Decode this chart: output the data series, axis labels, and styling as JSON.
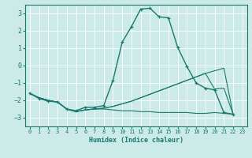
{
  "xlabel": "Humidex (Indice chaleur)",
  "bg_color": "#cceae7",
  "grid_color": "#ffffff",
  "line_color": "#1a7a6e",
  "xlim": [
    -0.5,
    23.5
  ],
  "ylim": [
    -3.5,
    3.5
  ],
  "xticks": [
    0,
    1,
    2,
    3,
    4,
    5,
    6,
    7,
    8,
    9,
    10,
    11,
    12,
    13,
    14,
    15,
    16,
    17,
    18,
    19,
    20,
    21,
    22,
    23
  ],
  "yticks": [
    -3,
    -2,
    -1,
    0,
    1,
    2,
    3
  ],
  "series": [
    {
      "x": [
        0,
        1,
        2,
        3,
        4,
        5,
        6,
        7,
        8,
        9,
        10,
        11,
        12,
        13,
        14,
        15,
        16,
        17,
        18,
        19,
        20,
        21,
        22
      ],
      "y": [
        -1.6,
        -1.9,
        -2.05,
        -2.1,
        -2.5,
        -2.6,
        -2.4,
        -2.4,
        -2.3,
        -0.85,
        1.35,
        2.25,
        3.25,
        3.3,
        2.8,
        2.75,
        1.05,
        -0.05,
        -1.0,
        -1.3,
        -1.4,
        -2.7,
        -2.8
      ],
      "marker": "+",
      "lw": 1.0
    },
    {
      "x": [
        0,
        1,
        2,
        3,
        4,
        5,
        6,
        7,
        8,
        9,
        10,
        11,
        12,
        13,
        14,
        15,
        16,
        17,
        18,
        19,
        20,
        21,
        22
      ],
      "y": [
        -1.6,
        -1.85,
        -2.0,
        -2.1,
        -2.5,
        -2.65,
        -2.55,
        -2.5,
        -2.5,
        -2.55,
        -2.6,
        -2.6,
        -2.65,
        -2.65,
        -2.7,
        -2.7,
        -2.7,
        -2.7,
        -2.75,
        -2.75,
        -2.7,
        -2.75,
        -2.8
      ],
      "marker": null,
      "lw": 0.8
    },
    {
      "x": [
        0,
        1,
        2,
        3,
        4,
        5,
        6,
        7,
        8,
        9,
        10,
        11,
        12,
        13,
        14,
        15,
        16,
        17,
        18,
        19,
        20,
        21,
        22
      ],
      "y": [
        -1.6,
        -1.85,
        -2.0,
        -2.1,
        -2.5,
        -2.65,
        -2.55,
        -2.5,
        -2.45,
        -2.35,
        -2.2,
        -2.05,
        -1.85,
        -1.65,
        -1.45,
        -1.25,
        -1.05,
        -0.85,
        -0.65,
        -0.45,
        -0.3,
        -0.15,
        -2.8
      ],
      "marker": null,
      "lw": 0.8
    },
    {
      "x": [
        0,
        1,
        2,
        3,
        4,
        5,
        6,
        7,
        8,
        9,
        10,
        11,
        12,
        13,
        14,
        15,
        16,
        17,
        18,
        19,
        20,
        21,
        22
      ],
      "y": [
        -1.6,
        -1.85,
        -2.0,
        -2.1,
        -2.5,
        -2.65,
        -2.55,
        -2.5,
        -2.45,
        -2.35,
        -2.2,
        -2.05,
        -1.85,
        -1.65,
        -1.45,
        -1.25,
        -1.05,
        -0.85,
        -0.65,
        -0.45,
        -1.35,
        -1.3,
        -2.8
      ],
      "marker": null,
      "lw": 0.8
    }
  ]
}
